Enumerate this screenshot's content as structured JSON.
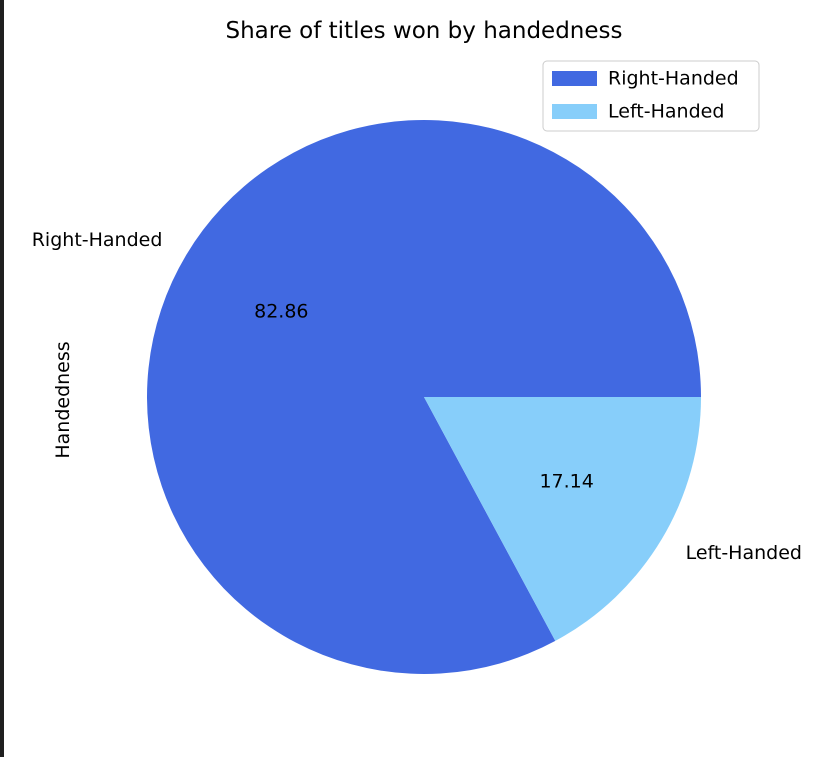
{
  "chart_data": {
    "type": "pie",
    "title": "Share of titles won by handedness",
    "ylabel": "Handedness",
    "slices": [
      {
        "label": "Right-Handed",
        "value": 82.86,
        "pct_label": "82.86",
        "color": "#4169E1"
      },
      {
        "label": "Left-Handed",
        "value": 17.14,
        "pct_label": "17.14",
        "color": "#87CEFA"
      }
    ],
    "legend": {
      "location": "upper right",
      "entries": [
        "Right-Handed",
        "Left-Handed"
      ]
    },
    "start_angle_deg": 0,
    "direction": "counterclockwise"
  }
}
